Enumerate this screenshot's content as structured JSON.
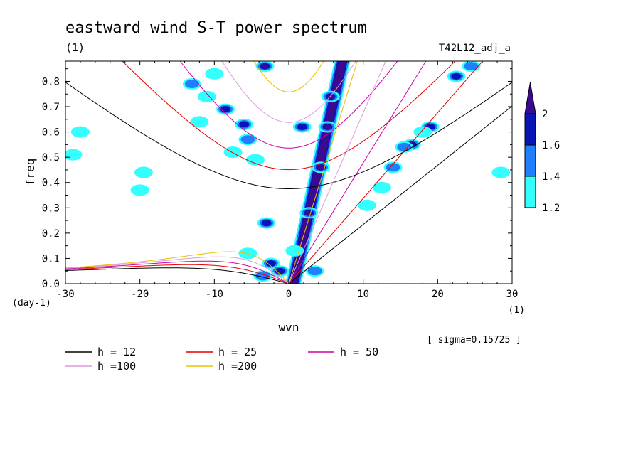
{
  "chart_data": {
    "type": "heatmap",
    "title": "eastward wind S-T power spectrum",
    "subtitle_left": "(1)",
    "subtitle_right": "T42L12_adj_a",
    "xlabel": "wvn",
    "ylabel": "freq",
    "x_unit": "(1)",
    "y_unit": "(day-1)",
    "sigma_note": "[ sigma=0.15725 ]",
    "xlim": [
      -30,
      30
    ],
    "ylim": [
      0,
      0.88
    ],
    "xticks": [
      -30,
      -20,
      -10,
      0,
      10,
      20,
      30
    ],
    "xtick_labels": [
      "-30",
      "-20",
      "-10",
      "0",
      "10",
      "20",
      "30"
    ],
    "yticks": [
      0,
      0.1,
      0.2,
      0.3,
      0.4,
      0.5,
      0.6,
      0.7,
      0.8
    ],
    "ytick_labels": [
      "0.0",
      "0.1",
      "0.2",
      "0.3",
      "0.4",
      "0.5",
      "0.6",
      "0.7",
      "0.8"
    ],
    "colorbar": {
      "levels": [
        1.2,
        1.4,
        1.6,
        2
      ],
      "labels": [
        "1.2",
        "1.4",
        "1.6",
        "2"
      ],
      "colors": [
        "#33ffff",
        "#1f7fff",
        "#0a14b4",
        "#3c0a8c"
      ]
    },
    "series": [
      {
        "name": "h = 12",
        "h": 12,
        "color": "#000000"
      },
      {
        "name": "h = 25",
        "h": 25,
        "color": "#e00000"
      },
      {
        "name": "h = 50",
        "h": 50,
        "color": "#cc00aa"
      },
      {
        "name": "h =100",
        "h": 100,
        "color": "#dd99dd"
      },
      {
        "name": "h =200",
        "h": 200,
        "color": "#e8c000"
      }
    ],
    "kelvin_band": {
      "x0": 0.6,
      "y0": 0.0,
      "x1": 7.2,
      "y1": 0.88,
      "level": 2
    },
    "blobs": [
      {
        "x": 5.6,
        "y": 0.74,
        "level": 2
      },
      {
        "x": 5.2,
        "y": 0.62,
        "level": 2
      },
      {
        "x": 4.3,
        "y": 0.46,
        "level": 2
      },
      {
        "x": 2.7,
        "y": 0.28,
        "level": 2
      },
      {
        "x": -3.2,
        "y": 0.86,
        "level": 2
      },
      {
        "x": 16.5,
        "y": 0.55,
        "level": 1.6
      },
      {
        "x": 19.0,
        "y": 0.62,
        "level": 1.6
      },
      {
        "x": 15.5,
        "y": 0.54,
        "level": 1.4
      },
      {
        "x": 14.0,
        "y": 0.46,
        "level": 1.4
      },
      {
        "x": 12.5,
        "y": 0.38,
        "level": 1.2
      },
      {
        "x": 10.5,
        "y": 0.31,
        "level": 1.2
      },
      {
        "x": 22.5,
        "y": 0.82,
        "level": 1.6
      },
      {
        "x": 24.5,
        "y": 0.86,
        "level": 1.4
      },
      {
        "x": 18.0,
        "y": 0.6,
        "level": 1.2
      },
      {
        "x": -13.0,
        "y": 0.79,
        "level": 1.4
      },
      {
        "x": -11.0,
        "y": 0.74,
        "level": 1.2
      },
      {
        "x": -10.0,
        "y": 0.83,
        "level": 1.2
      },
      {
        "x": -8.5,
        "y": 0.69,
        "level": 1.6
      },
      {
        "x": -6.0,
        "y": 0.63,
        "level": 1.6
      },
      {
        "x": -5.5,
        "y": 0.57,
        "level": 1.4
      },
      {
        "x": -4.5,
        "y": 0.49,
        "level": 1.2
      },
      {
        "x": -7.5,
        "y": 0.52,
        "level": 1.2
      },
      {
        "x": -12.0,
        "y": 0.64,
        "level": 1.2
      },
      {
        "x": -3.0,
        "y": 0.24,
        "level": 1.6
      },
      {
        "x": -2.4,
        "y": 0.08,
        "level": 1.6
      },
      {
        "x": -1.2,
        "y": 0.05,
        "level": 1.6
      },
      {
        "x": -5.5,
        "y": 0.12,
        "level": 1.2
      },
      {
        "x": -3.5,
        "y": 0.03,
        "level": 1.4
      },
      {
        "x": 0.8,
        "y": 0.13,
        "level": 1.2
      },
      {
        "x": 3.5,
        "y": 0.05,
        "level": 1.4
      },
      {
        "x": -19.5,
        "y": 0.44,
        "level": 1.2
      },
      {
        "x": -20.0,
        "y": 0.37,
        "level": 1.2
      },
      {
        "x": -28.0,
        "y": 0.6,
        "level": 1.2
      },
      {
        "x": 28.5,
        "y": 0.44,
        "level": 1.2
      },
      {
        "x": -29.0,
        "y": 0.51,
        "level": 1.2
      },
      {
        "x": 1.8,
        "y": 0.62,
        "level": 1.6
      }
    ]
  }
}
